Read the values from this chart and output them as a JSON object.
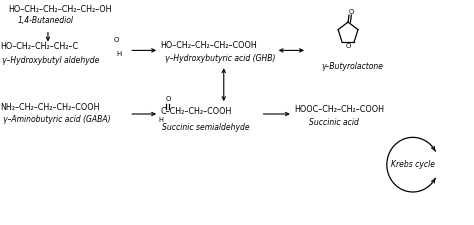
{
  "bg_color": "#ffffff",
  "figsize": [
    4.74,
    2.25
  ],
  "dpi": 100,
  "font_size": 5.5,
  "formula_font_size": 5.8,
  "text_color": "#000000",
  "xlim": [
    0,
    10
  ],
  "ylim": [
    0,
    4.5
  ]
}
